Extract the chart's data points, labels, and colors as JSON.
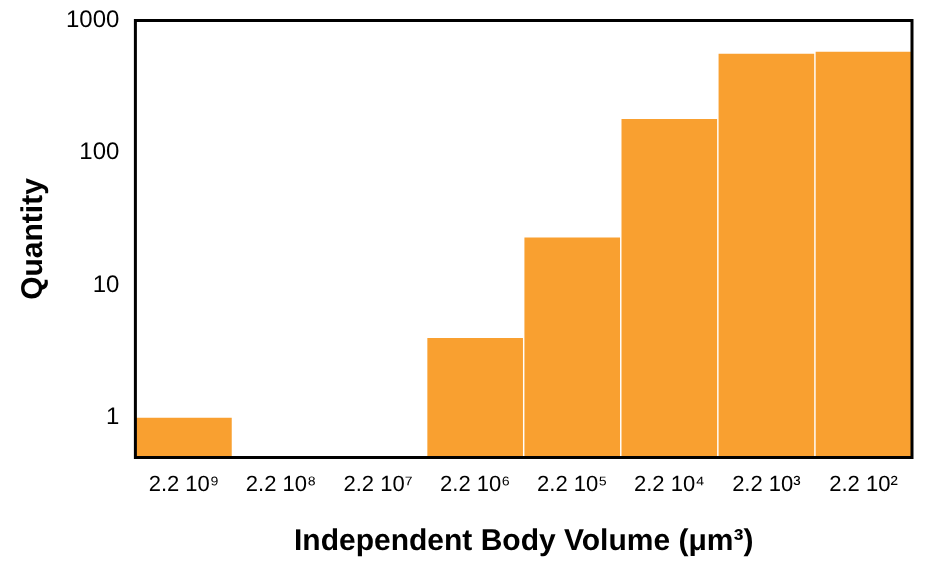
{
  "chart_data": {
    "type": "bar",
    "xlabel": "Independent Body Volume (μm³)",
    "ylabel": "Quantity",
    "categories": [
      "2.2 10⁹",
      "2.2 10⁸",
      "2.2 10⁷",
      "2.2 10⁶",
      "2.2 10⁵",
      "2.2 10⁴",
      "2.2 10³",
      "2.2 10²"
    ],
    "values": [
      1,
      null,
      null,
      4,
      23,
      180,
      560,
      580
    ],
    "color": "#f9a030",
    "log": true,
    "ylim": [
      0.5,
      1000
    ],
    "yticks": [
      1,
      10,
      100,
      1000
    ],
    "grid": false
  }
}
